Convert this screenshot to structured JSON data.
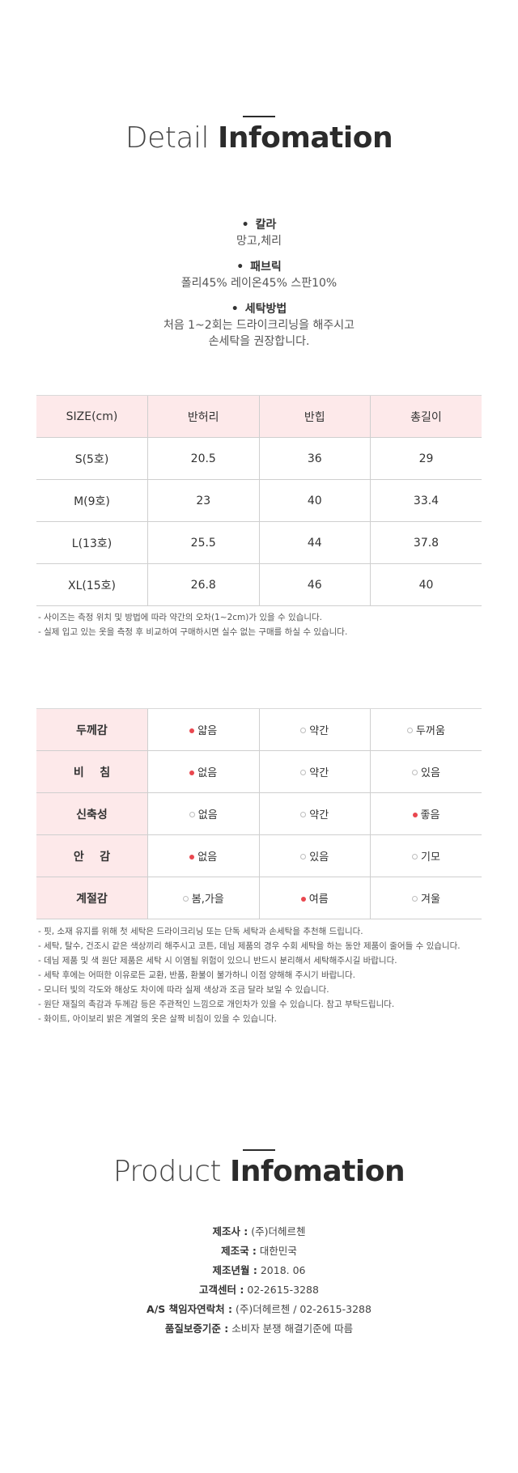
{
  "detail": {
    "title_light": "Detail",
    "title_bold": "Infomation"
  },
  "info": [
    {
      "head": "칼라",
      "value": "망고,체리"
    },
    {
      "head": "패브릭",
      "value": "폴리45% 레이온45% 스판10%"
    },
    {
      "head": "세탁방법",
      "value": "처음 1~2회는 드라이크리닝을 해주시고",
      "value2": "손세탁을 권장합니다."
    }
  ],
  "size_table": {
    "headers": [
      "SIZE(cm)",
      "반허리",
      "반힙",
      "총길이"
    ],
    "rows": [
      [
        "S(5호)",
        "20.5",
        "36",
        "29"
      ],
      [
        "M(9호)",
        "23",
        "40",
        "33.4"
      ],
      [
        "L(13호)",
        "25.5",
        "44",
        "37.8"
      ],
      [
        "XL(15호)",
        "26.8",
        "46",
        "40"
      ]
    ]
  },
  "size_notes": [
    "- 사이즈는 측정 위치 및 방법에 따라 약간의 오차(1~2cm)가 있을 수 있습니다.",
    "- 실제 입고 있는 옷을 측정 후 비교하여 구매하시면 실수 없는 구매를 하실 수 있습니다."
  ],
  "feel_table": {
    "rows": [
      {
        "label": "두께감",
        "options": [
          "얇음",
          "약간",
          "두꺼움"
        ],
        "selected": 0
      },
      {
        "label": "비    침",
        "options": [
          "없음",
          "약간",
          "있음"
        ],
        "selected": 0
      },
      {
        "label": "신축성",
        "options": [
          "없음",
          "약간",
          "좋음"
        ],
        "selected": 2
      },
      {
        "label": "안    감",
        "options": [
          "없음",
          "있음",
          "기모"
        ],
        "selected": 0
      },
      {
        "label": "계절감",
        "options": [
          "봄,가을",
          "여름",
          "겨울"
        ],
        "selected": 1
      }
    ]
  },
  "care_notes": [
    "- 핏, 소재 유지를 위해 첫 세탁은 드라이크리닝 또는 단독 세탁과 손세탁을 추천해 드립니다.",
    "- 세탁, 탈수, 건조시 같은 색상끼리 해주시고 코튼, 데님 제품의 경우 수회 세탁을 하는 동안 제품이 줄어들 수 있습니다.",
    "- 데님 제품 및 색 원단 제품은 세탁 시 이염될 위험이 있으니 반드시 분리해서 세탁해주시길 바랍니다.",
    "- 세탁 후에는 어떠한 이유로든 교환, 반품, 환불이 불가하니 이점 양해해 주시기 바랍니다.",
    "- 모니터 빛의 각도와 해상도 차이에 따라 실제 색상과 조금 달라 보일 수 있습니다.",
    "- 원단 재질의 촉감과 두께감 등은 주관적인 느낌으로 개인차가 있을 수 있습니다. 참고 부탁드립니다.",
    "- 화이트, 아이보리 밝은 계열의 옷은 살짝 비침이 있을 수 있습니다."
  ],
  "product": {
    "title_light": "Product",
    "title_bold": "Infomation",
    "lines": [
      {
        "k": "제조사 :",
        "v": " (주)더헤르첸"
      },
      {
        "k": "제조국 :",
        "v": " 대한민국"
      },
      {
        "k": "제조년월 :",
        "v": " 2018. 06"
      },
      {
        "k": "고객센터 :",
        "v": " 02-2615-3288"
      },
      {
        "k": "A/S 책임자연락처 :",
        "v": " (주)더헤르첸 / 02-2615-3288"
      },
      {
        "k": "품질보증기준 :",
        "v": " 소비자 분쟁 해결기준에 따름"
      }
    ]
  },
  "colors": {
    "accent": "#e9474f",
    "header_bg": "#fde9ea"
  }
}
